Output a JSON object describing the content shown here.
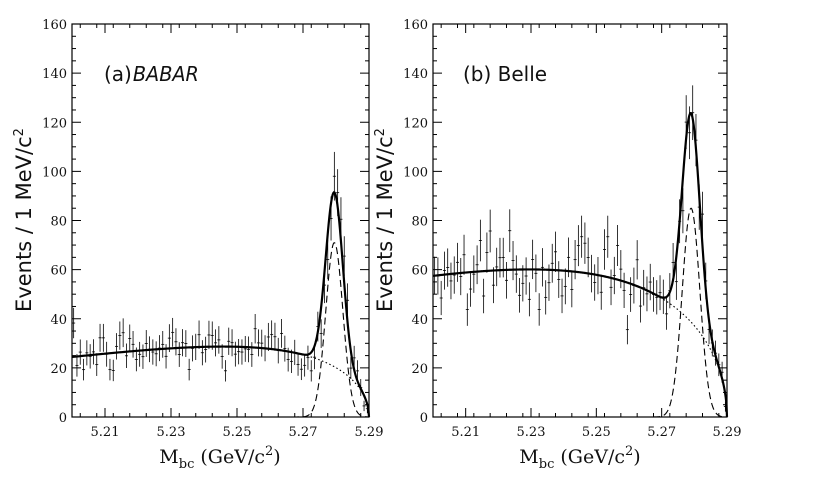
{
  "chart_data": [
    {
      "type": "scatter",
      "title": "(a)",
      "experiment": "BABAR",
      "xlabel": "M",
      "xlabel_sub": "bc",
      "xlabel_unit": " (GeV/c",
      "xlabel_unit_sup": "2",
      "xlabel_close": ")",
      "ylabel": "Events / 1 MeV/c",
      "ylabel_sup": "2",
      "xlim": [
        5.2,
        5.29
      ],
      "ylim": [
        0,
        160
      ],
      "xticks": [
        5.21,
        5.23,
        5.25,
        5.27,
        5.29
      ],
      "xtick_labels": [
        "5.21",
        "5.23",
        "5.25",
        "5.27",
        "5.29"
      ],
      "yticks": [
        0,
        20,
        40,
        60,
        80,
        100,
        120,
        140,
        160
      ],
      "ytick_labels": [
        "0",
        "20",
        "40",
        "60",
        "80",
        "100",
        "120",
        "140",
        "160"
      ],
      "fit_model": {
        "background_level": 27.5,
        "background_shape": "ARGUS",
        "signal_peak": 5.2795,
        "signal_amplitude": 71,
        "signal_sigma": 0.0026
      },
      "series": [
        {
          "name": "data",
          "style": "points-with-errorbars"
        },
        {
          "name": "total fit",
          "style": "solid"
        },
        {
          "name": "signal",
          "style": "dashed"
        },
        {
          "name": "background",
          "style": "dotted"
        }
      ]
    },
    {
      "type": "scatter",
      "title": "(b) Belle",
      "xlabel": "M",
      "xlabel_sub": "bc",
      "xlabel_unit": " (GeV/c",
      "xlabel_unit_sup": "2",
      "xlabel_close": ")",
      "ylabel": "Events / 1 MeV/c",
      "ylabel_sup": "2",
      "xlim": [
        5.2,
        5.29
      ],
      "ylim": [
        0,
        160
      ],
      "xticks": [
        5.21,
        5.23,
        5.25,
        5.27,
        5.29
      ],
      "xtick_labels": [
        "5.21",
        "5.23",
        "5.25",
        "5.27",
        "5.29"
      ],
      "yticks": [
        0,
        20,
        40,
        60,
        80,
        100,
        120,
        140,
        160
      ],
      "ytick_labels": [
        "0",
        "20",
        "40",
        "60",
        "80",
        "100",
        "120",
        "140",
        "160"
      ],
      "fit_model": {
        "background_level": 60,
        "background_shape": "ARGUS",
        "signal_peak": 5.279,
        "signal_amplitude": 85,
        "signal_sigma": 0.0027
      },
      "series": [
        {
          "name": "data",
          "style": "points-with-errorbars"
        },
        {
          "name": "total fit",
          "style": "solid"
        },
        {
          "name": "signal",
          "style": "dashed"
        },
        {
          "name": "background",
          "style": "dotted"
        }
      ]
    }
  ]
}
